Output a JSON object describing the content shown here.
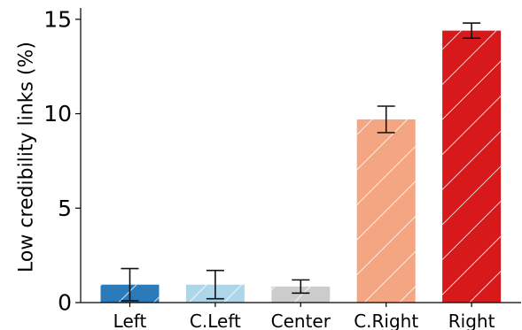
{
  "chart_data": {
    "type": "bar",
    "categories": [
      "Left",
      "C.Left",
      "Center",
      "C.Right",
      "Right"
    ],
    "values": [
      0.95,
      0.95,
      0.85,
      9.7,
      14.4
    ],
    "errors": [
      0.85,
      0.75,
      0.35,
      0.7,
      0.4
    ],
    "colors": [
      "#2b7bba",
      "#aed6eb",
      "#cccccc",
      "#f4a582",
      "#d7191c"
    ],
    "hatch": "diagonal-white",
    "title": "",
    "xlabel": "",
    "ylabel": "Low credibility links (%)",
    "ylim": [
      0,
      15.6
    ],
    "yticks": [
      0,
      5,
      10,
      15
    ],
    "grid": false,
    "spines": [
      "left",
      "bottom"
    ]
  }
}
